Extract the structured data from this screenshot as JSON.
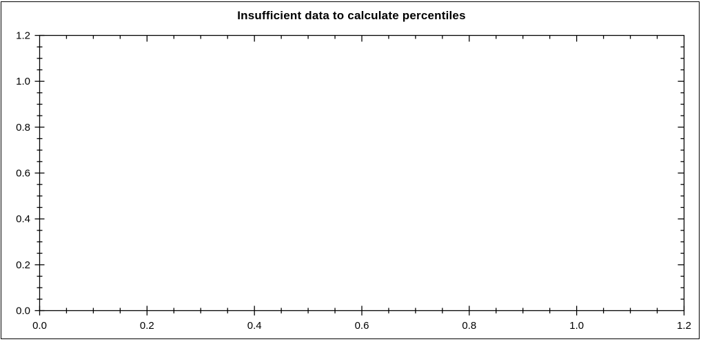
{
  "title": "Insufficient data to calculate percentiles",
  "colors": {
    "background": "#ffffff",
    "axis": "#000000",
    "text": "#000000",
    "frame_border": "#000000"
  },
  "chart_data": {
    "type": "scatter",
    "title": "Insufficient data to calculate percentiles",
    "series": [],
    "xlabel": "",
    "ylabel": "",
    "xlim": [
      0,
      1.2
    ],
    "ylim": [
      0,
      1.2
    ],
    "x_major_ticks": [
      0.0,
      0.2,
      0.4,
      0.6,
      0.8,
      1.0,
      1.2
    ],
    "y_major_ticks": [
      0.0,
      0.2,
      0.4,
      0.6,
      0.8,
      1.0,
      1.2
    ],
    "x_tick_labels": [
      "0.0",
      "0.2",
      "0.4",
      "0.6",
      "0.8",
      "1.0",
      "1.2"
    ],
    "y_tick_labels": [
      "0.0",
      "0.2",
      "0.4",
      "0.6",
      "0.8",
      "1.0",
      "1.2"
    ],
    "minor_tick_step": 0.05,
    "grid": false,
    "legend": null
  }
}
